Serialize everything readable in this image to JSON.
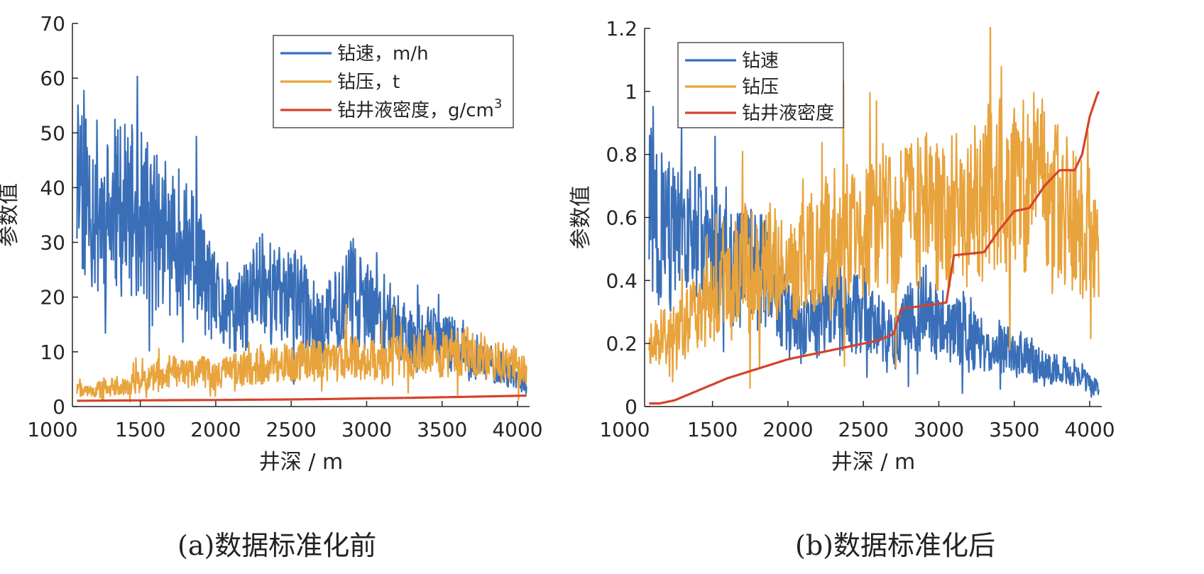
{
  "captions": {
    "a": "(a)数据标准化前",
    "b": "(b)数据标准化后"
  },
  "chart_data": [
    {
      "type": "line",
      "panel": "a",
      "xlabel": "井深 / m",
      "ylabel": "参数值",
      "xlim": [
        1050,
        4080
      ],
      "ylim": [
        0,
        70
      ],
      "xticks": [
        1000,
        1500,
        2000,
        2500,
        3000,
        3500,
        4000
      ],
      "yticks": [
        0,
        10,
        20,
        30,
        40,
        50,
        60,
        70
      ],
      "grid": false,
      "legend_position": "top-right",
      "legend": [
        {
          "label": "钻速，m/h",
          "sup": ""
        },
        {
          "label": "钻压，t",
          "sup": ""
        },
        {
          "label": "钻井液密度，g/cm",
          "sup": "3"
        }
      ],
      "series": [
        {
          "name": "钻速，m/h",
          "color": "#3a6fb8",
          "x": [
            1080,
            1100,
            1150,
            1200,
            1300,
            1400,
            1500,
            1600,
            1700,
            1800,
            1900,
            2000,
            2100,
            2200,
            2300,
            2400,
            2500,
            2600,
            2700,
            2800,
            2900,
            3000,
            3100,
            3200,
            3300,
            3400,
            3500,
            3600,
            3700,
            3800,
            3900,
            4000,
            4060
          ],
          "y": [
            40,
            46,
            38,
            37,
            34,
            36,
            35,
            32,
            30,
            30,
            25,
            19,
            16,
            18,
            24,
            20,
            21,
            18,
            14,
            18,
            22,
            18,
            17,
            15,
            13,
            13,
            12,
            11,
            8,
            8,
            7,
            5,
            4
          ]
        },
        {
          "name": "钻压，t",
          "color": "#e8a33c",
          "x": [
            1080,
            1200,
            1300,
            1400,
            1500,
            1600,
            1700,
            1800,
            1900,
            2000,
            2100,
            2200,
            2300,
            2400,
            2500,
            2600,
            2700,
            2800,
            2900,
            3000,
            3100,
            3200,
            3300,
            3400,
            3500,
            3600,
            3700,
            3800,
            3900,
            4000,
            4060
          ],
          "y": [
            3,
            3,
            3.5,
            4,
            4.5,
            5.5,
            6.5,
            6,
            6.5,
            5.5,
            6.5,
            7,
            7.5,
            8,
            8,
            8.5,
            8.5,
            8.5,
            9,
            8.5,
            9,
            9,
            9,
            10,
            9.5,
            10,
            10,
            9,
            8,
            7.5,
            6
          ]
        },
        {
          "name": "钻井液密度，g/cm3",
          "color": "#d4442a",
          "x": [
            1080,
            1300,
            1600,
            2000,
            2500,
            2800,
            3000,
            3300,
            3500,
            3800,
            4060
          ],
          "y": [
            1.05,
            1.1,
            1.15,
            1.2,
            1.3,
            1.4,
            1.5,
            1.6,
            1.7,
            1.85,
            2.0
          ]
        }
      ]
    },
    {
      "type": "line",
      "panel": "b",
      "xlabel": "井深 / m",
      "ylabel": "参数值",
      "xlim": [
        1050,
        4080
      ],
      "ylim": [
        0,
        1.2
      ],
      "xticks": [
        1000,
        1500,
        2000,
        2500,
        3000,
        3500,
        4000
      ],
      "yticks": [
        0,
        0.2,
        0.4,
        0.6,
        0.8,
        1,
        1.2
      ],
      "grid": false,
      "legend_position": "top-left",
      "legend": [
        {
          "label": "钻速",
          "sup": ""
        },
        {
          "label": "钻压",
          "sup": ""
        },
        {
          "label": "钻井液密度",
          "sup": ""
        }
      ],
      "series": [
        {
          "name": "钻速",
          "color": "#3a6fb8",
          "x": [
            1080,
            1100,
            1150,
            1200,
            1300,
            1400,
            1500,
            1600,
            1700,
            1800,
            1900,
            2000,
            2100,
            2200,
            2300,
            2400,
            2500,
            2600,
            2700,
            2800,
            2900,
            3000,
            3100,
            3200,
            3300,
            3400,
            3500,
            3600,
            3700,
            3800,
            3900,
            4000,
            4060
          ],
          "y": [
            0.6,
            0.68,
            0.56,
            0.55,
            0.5,
            0.53,
            0.52,
            0.47,
            0.44,
            0.44,
            0.37,
            0.28,
            0.24,
            0.27,
            0.35,
            0.29,
            0.31,
            0.26,
            0.21,
            0.27,
            0.32,
            0.26,
            0.25,
            0.22,
            0.19,
            0.19,
            0.17,
            0.16,
            0.12,
            0.12,
            0.1,
            0.07,
            0.06
          ]
        },
        {
          "name": "钻压",
          "color": "#e8a33c",
          "x": [
            1080,
            1200,
            1300,
            1400,
            1500,
            1600,
            1700,
            1800,
            1900,
            2000,
            2100,
            2200,
            2300,
            2400,
            2500,
            2600,
            2700,
            2800,
            2900,
            3000,
            3100,
            3200,
            3300,
            3400,
            3500,
            3600,
            3700,
            3800,
            3900,
            4000,
            4060
          ],
          "y": [
            0.22,
            0.22,
            0.25,
            0.3,
            0.33,
            0.4,
            0.47,
            0.44,
            0.47,
            0.4,
            0.47,
            0.5,
            0.54,
            0.57,
            0.57,
            0.6,
            0.6,
            0.6,
            0.63,
            0.6,
            0.63,
            0.63,
            0.65,
            0.72,
            0.68,
            0.72,
            0.72,
            0.65,
            0.58,
            0.54,
            0.45
          ]
        },
        {
          "name": "钻井液密度",
          "color": "#d4442a",
          "x": [
            1080,
            1150,
            1250,
            1400,
            1600,
            1800,
            2000,
            2200,
            2400,
            2600,
            2700,
            2750,
            2900,
            3050,
            3100,
            3300,
            3400,
            3500,
            3600,
            3700,
            3800,
            3900,
            3950,
            4000,
            4050,
            4060
          ],
          "y": [
            0.01,
            0.01,
            0.02,
            0.05,
            0.09,
            0.12,
            0.15,
            0.17,
            0.19,
            0.21,
            0.23,
            0.31,
            0.32,
            0.33,
            0.48,
            0.49,
            0.56,
            0.62,
            0.63,
            0.7,
            0.75,
            0.75,
            0.8,
            0.92,
            0.99,
            1.0
          ]
        }
      ]
    }
  ]
}
